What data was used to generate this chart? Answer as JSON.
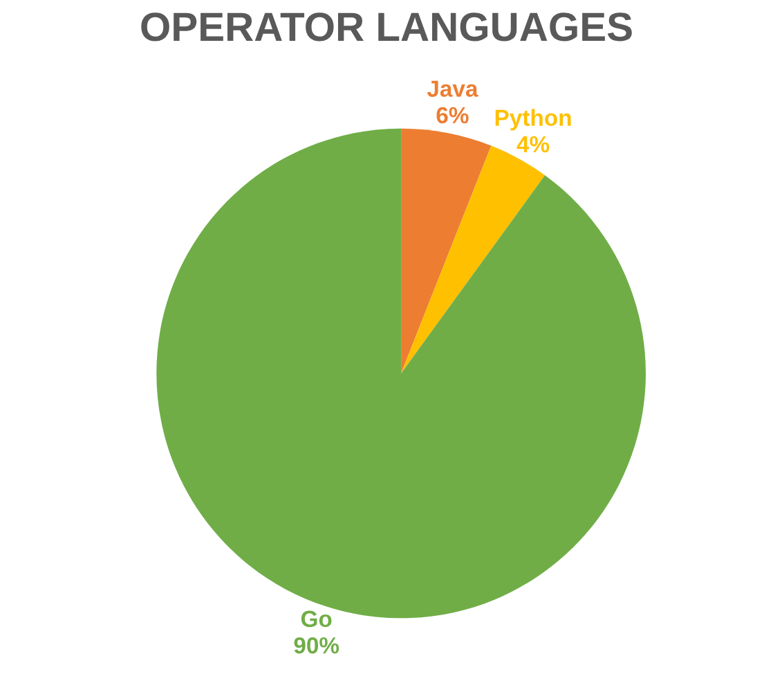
{
  "chart_data": {
    "type": "pie",
    "title": "OPERATOR LANGUAGES",
    "categories": [
      "Java",
      "Python",
      "Go"
    ],
    "values": [
      6,
      4,
      90
    ],
    "colors": [
      "#ed7d31",
      "#ffc000",
      "#70ad47"
    ],
    "value_labels": [
      "6%",
      "4%",
      "90%"
    ],
    "legend": false
  }
}
